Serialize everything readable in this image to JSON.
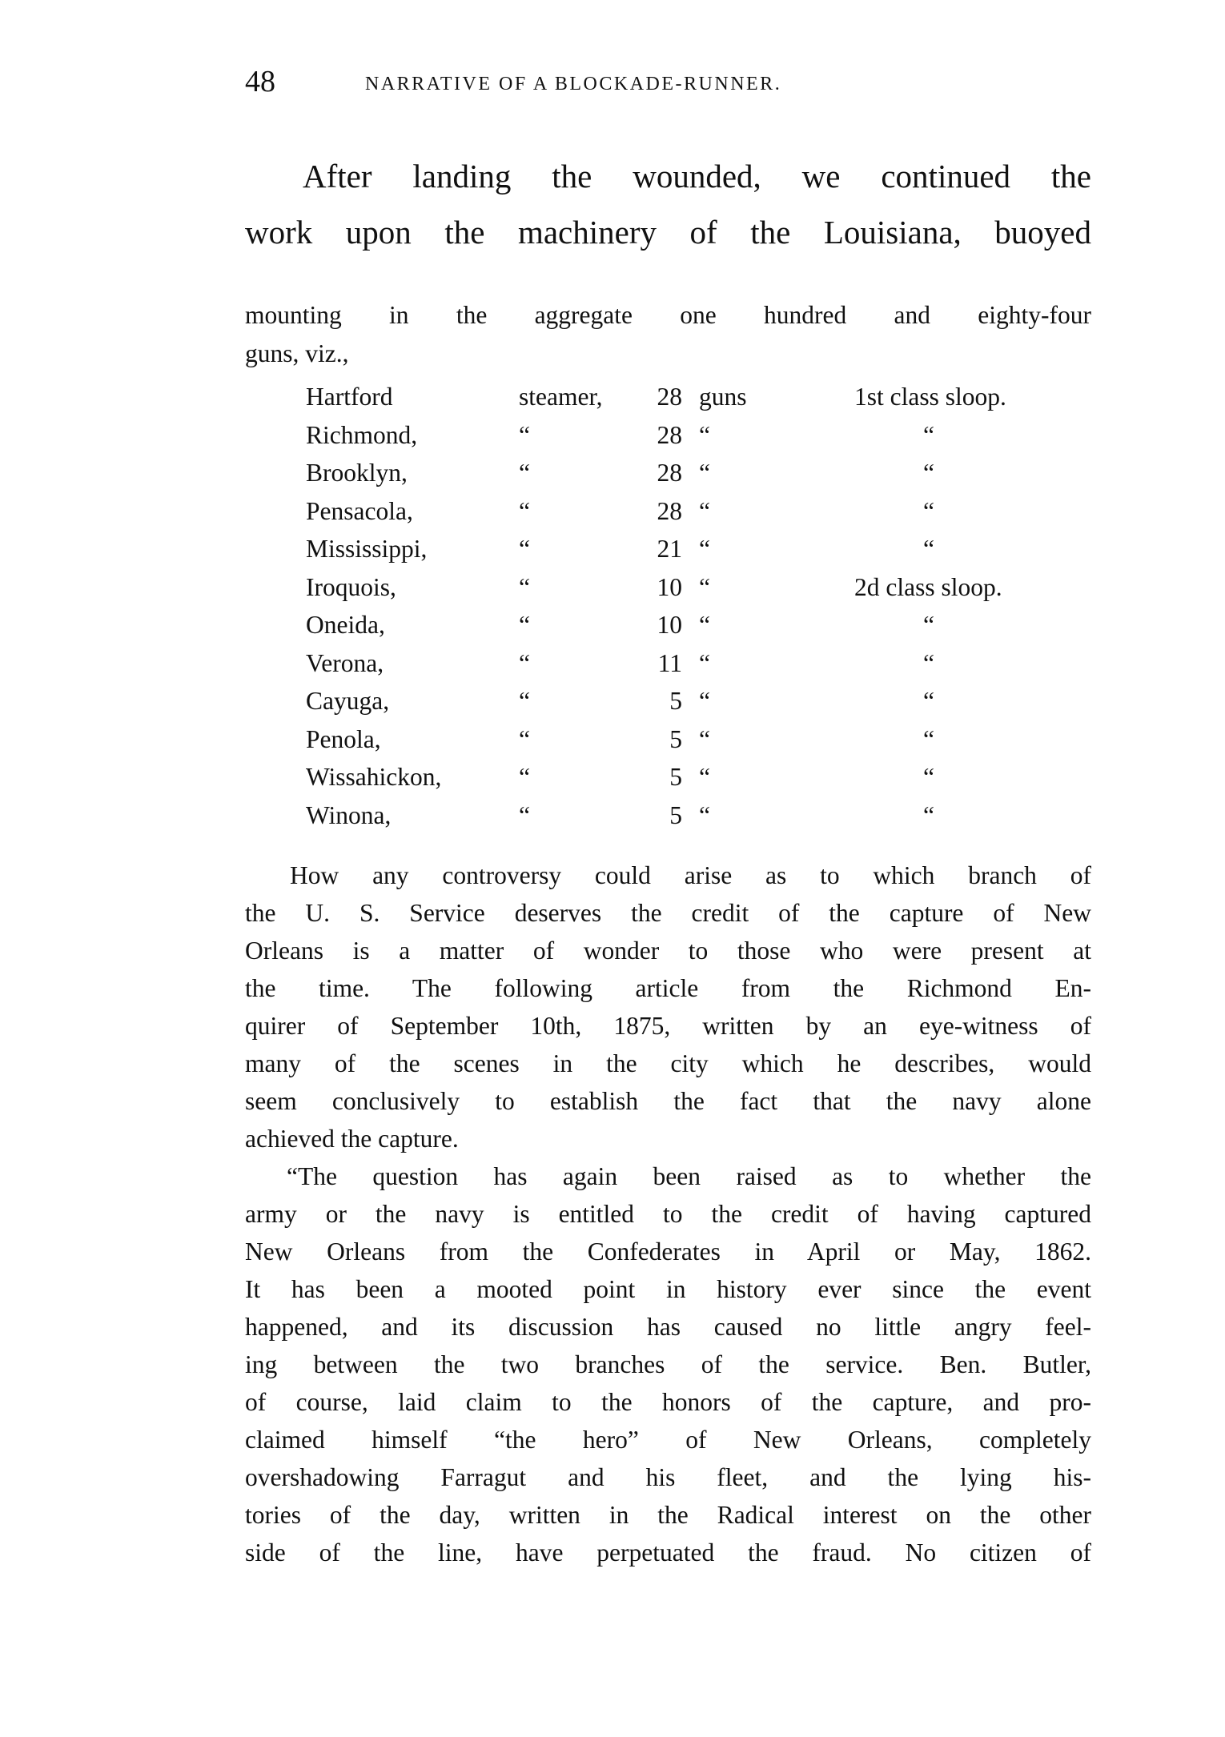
{
  "header": {
    "page_number": "48",
    "running_title": "NARRATIVE OF A BLOCKADE-RUNNER."
  },
  "intro_lines": [
    "After landing the wounded, we continued the",
    "work upon the machinery of the Louisiana, buoyed"
  ],
  "lead_lines": [
    "mounting in the aggregate one hundred and eighty-four",
    "guns, viz.,"
  ],
  "ships_table": {
    "rows": [
      {
        "name": "Hartford",
        "type": "steamer,",
        "guns": "28",
        "unit": "guns",
        "class": "1st class sloop."
      },
      {
        "name": "Richmond,",
        "type": "“",
        "guns": "28",
        "unit": "“",
        "class": "“"
      },
      {
        "name": "Brooklyn,",
        "type": "“",
        "guns": "28",
        "unit": "“",
        "class": "“"
      },
      {
        "name": "Pensacola,",
        "type": "“",
        "guns": "28",
        "unit": "“",
        "class": "“"
      },
      {
        "name": "Mississippi,",
        "type": "“",
        "guns": "21",
        "unit": "“",
        "class": "“"
      },
      {
        "name": "Iroquois,",
        "type": "“",
        "guns": "10",
        "unit": "“",
        "class": "2d class sloop."
      },
      {
        "name": "Oneida,",
        "type": "“",
        "guns": "10",
        "unit": "“",
        "class": "“"
      },
      {
        "name": "Verona,",
        "type": "“",
        "guns": "11",
        "unit": "“",
        "class": "“"
      },
      {
        "name": "Cayuga,",
        "type": "“",
        "guns": "5",
        "unit": "“",
        "class": "“"
      },
      {
        "name": "Penola,",
        "type": "“",
        "guns": "5",
        "unit": "“",
        "class": "“"
      },
      {
        "name": "Wissahickon,",
        "type": "“",
        "guns": "5",
        "unit": "“",
        "class": "“"
      },
      {
        "name": "Winona,",
        "type": "“",
        "guns": "5",
        "unit": "“",
        "class": "“"
      }
    ]
  },
  "paragraph1_lines": [
    "How any controversy could arise as to which branch of",
    "the U. S. Service deserves the credit of the capture of New",
    "Orleans is a matter of wonder to those who were present at",
    "the time.  The following article from the Richmond En-",
    "quirer of September 10th, 1875, written by an eye-witness of",
    "many of the scenes in the city which he describes, would",
    "seem conclusively to establish the fact that the navy alone",
    "achieved the capture."
  ],
  "paragraph2_lines": [
    "“The question has again been raised as to whether the",
    "army or the navy is entitled to the credit of having captured",
    "New Orleans from the Confederates in April or May, 1862.",
    "It has been a mooted point in history ever since the event",
    "happened, and its discussion has caused no little angry feel-",
    "ing between the two branches of the service.  Ben. Butler,",
    "of course, laid claim to the honors of the capture, and pro-",
    "claimed himself “the hero” of New Orleans, completely",
    "overshadowing Farragut and his fleet, and the lying his-",
    "tories of the day, written in the Radical interest on the other",
    "side of the line, have perpetuated the fraud.  No citizen of"
  ]
}
